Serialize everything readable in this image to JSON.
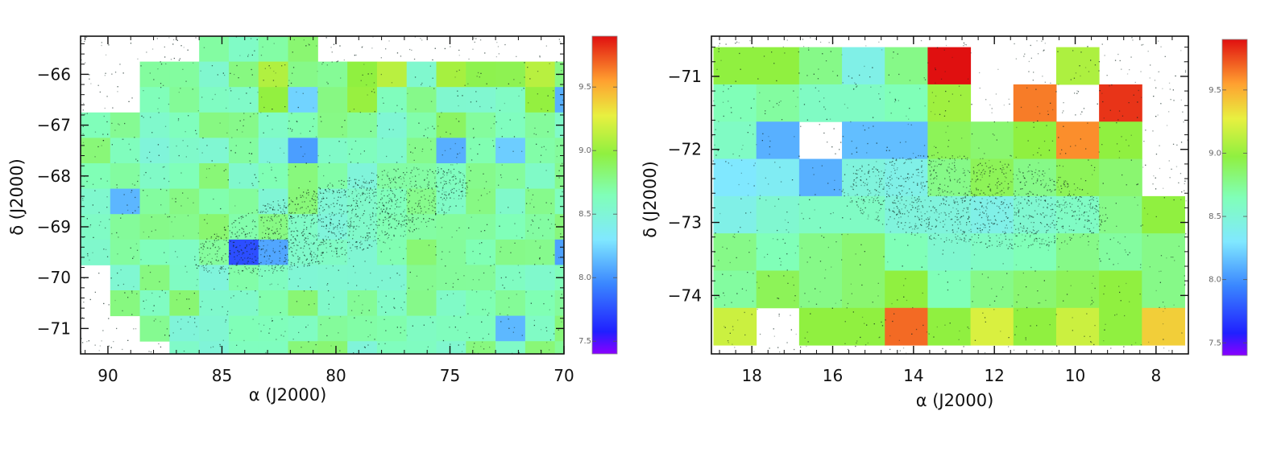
{
  "chart_data": [
    {
      "type": "heatmap",
      "title": "",
      "xlabel": "α (J2000)",
      "ylabel": "δ (J2000)",
      "xlim": [
        91.2,
        70.0
      ],
      "ylim": [
        -71.5,
        -65.25
      ],
      "xticks": [
        "90",
        "85",
        "80",
        "75",
        "70"
      ],
      "xtick_values": [
        90,
        85,
        80,
        75,
        70
      ],
      "yticks": [
        "−66",
        "−67",
        "−68",
        "−69",
        "−70",
        "−71"
      ],
      "ytick_values": [
        -66,
        -67,
        -68,
        -69,
        -70,
        -71
      ],
      "colorbar": {
        "range": [
          7.4,
          9.9
        ],
        "ticks": [
          "7.5",
          "8.0",
          "8.5",
          "9.0",
          "9.5"
        ],
        "tick_values": [
          7.5,
          8.0,
          8.5,
          9.0,
          9.5
        ]
      },
      "grid": {
        "x_start": 91.2,
        "x_step": -1.3,
        "y_top": -65.25,
        "y_step": -0.5,
        "rows": [
          "....8888...........",
          "..88889889989999889",
          "..8888978988888977.",
          "88888888888898888888",
          "88888887888878788899",
          "8888888888888888888.",
          "8788888888888888888.",
          "88888888888888888888",
          "8888867888888888788.",
          ".8888888888888888888",
          ".8888888888888888888",
          "..8888888888887888888",
          "...88888888888888888",
          "...888888888888888",
          "....888888888888889"
        ]
      }
    },
    {
      "type": "heatmap",
      "title": "",
      "xlabel": "α (J2000)",
      "ylabel": "δ (J2000)",
      "xlim": [
        19.0,
        7.2
      ],
      "ylim": [
        -74.8,
        -70.45
      ],
      "xticks": [
        "18",
        "16",
        "14",
        "12",
        "10",
        "8"
      ],
      "xtick_values": [
        18,
        16,
        14,
        12,
        10,
        8
      ],
      "yticks": [
        "−71",
        "−72",
        "−73",
        "−74"
      ],
      "ytick_values": [
        -71,
        -72,
        -73,
        -74
      ],
      "colorbar": {
        "range": [
          7.4,
          9.9
        ],
        "ticks": [
          "7.5",
          "8.0",
          "8.5",
          "9.0",
          "9.5"
        ],
        "tick_values": [
          7.5,
          8.0,
          8.5,
          9.0,
          9.5
        ]
      },
      "grid": {
        "x_start": 18.95,
        "x_step": -1.06,
        "y_top": -70.6,
        "y_step": -0.51,
        "rows_values": [
          [
            8.85,
            8.85,
            8.7,
            8.4,
            8.7,
            9.9,
            null,
            null,
            8.95,
            null,
            null
          ],
          [
            8.6,
            8.65,
            8.55,
            8.55,
            8.6,
            8.9,
            null,
            9.6,
            null,
            9.8,
            null
          ],
          [
            8.55,
            8.1,
            null,
            8.15,
            8.15,
            8.8,
            8.75,
            8.85,
            9.55,
            8.85,
            null
          ],
          [
            8.3,
            8.35,
            8.1,
            8.45,
            8.4,
            8.7,
            8.8,
            8.7,
            8.8,
            8.75,
            null
          ],
          [
            8.4,
            8.5,
            8.55,
            8.55,
            8.45,
            8.45,
            8.4,
            8.5,
            8.55,
            8.7,
            8.85
          ],
          [
            8.7,
            8.6,
            8.7,
            8.75,
            8.6,
            8.5,
            8.55,
            8.6,
            8.7,
            8.65,
            8.7
          ],
          [
            8.65,
            8.8,
            8.7,
            8.75,
            8.85,
            8.6,
            8.7,
            8.75,
            8.8,
            8.85,
            8.7
          ],
          [
            9.05,
            null,
            8.85,
            8.85,
            9.65,
            8.85,
            9.1,
            8.85,
            9.05,
            8.85,
            9.3
          ]
        ]
      }
    }
  ]
}
